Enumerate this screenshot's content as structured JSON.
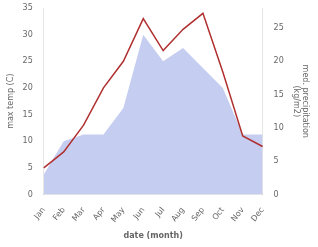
{
  "chart_data": {
    "type": "line",
    "xlabel": "date (month)",
    "ylabel": "max temp (C)",
    "y2label": "med. precipitation\n(kg/m2)",
    "categories": [
      "Jan",
      "Feb",
      "Mar",
      "Apr",
      "May",
      "Jun",
      "Jul",
      "Aug",
      "Sep",
      "Oct",
      "Nov",
      "Dec"
    ],
    "series": [
      {
        "type": "area",
        "color": "#c5cdf0",
        "axis": "y2",
        "values": [
          3,
          8,
          9,
          9,
          13,
          24,
          20,
          22,
          19,
          16,
          9,
          9
        ]
      },
      {
        "type": "line",
        "color": "#b03030",
        "values": [
          5,
          8,
          13,
          20,
          25,
          33,
          27,
          31,
          34,
          23,
          11,
          9
        ]
      }
    ],
    "ylim": [
      0,
      35
    ],
    "yticks": [
      0,
      5,
      10,
      15,
      20,
      25,
      30,
      35
    ],
    "y2lim": [
      0,
      28
    ],
    "y2ticks": [
      0,
      5,
      10,
      15,
      20,
      25
    ],
    "grid": false
  }
}
